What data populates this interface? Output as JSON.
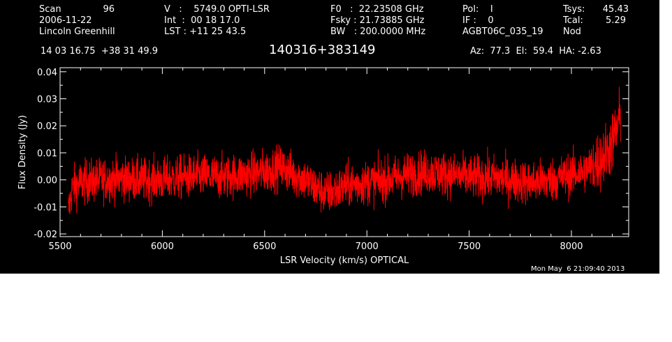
{
  "header": {
    "scan_label": "Scan",
    "scan_value": "96",
    "date": "2006-11-22",
    "observer": "Lincoln Greenhill",
    "velocity": "V   :    5749.0 OPTI-LSR",
    "integration": "Int  :  00 18 17.0",
    "lst": "LST : +11 25 43.5",
    "f0": "F0   :  22.23508 GHz",
    "fsky": "Fsky : 21.73885 GHz",
    "bw": "BW   : 200.0000 MHz",
    "pol": "Pol:    I",
    "if": "IF :    0",
    "project": "AGBT06C_035_19",
    "tsys_label": "Tsys:",
    "tsys_value": "45.43",
    "tcal_label": "Tcal:",
    "tcal_value": "5.29",
    "procedure": "Nod",
    "coords": "14 03 16.75  +38 31 49.9",
    "source": "140316+383149",
    "pointing": "Az:  77.3  El:  59.4  HA: -2.63"
  },
  "timestamp": "Mon May  6 21:09:40 2013",
  "colors": {
    "background": "#000000",
    "foreground": "#ffffff",
    "series": "#ff0000"
  },
  "chart_data": {
    "type": "line",
    "xlabel": "LSR Velocity (km/s) OPTICAL",
    "ylabel": "Flux Density (Jy)",
    "xlim": [
      5500,
      8280
    ],
    "ylim": [
      -0.021,
      0.0415
    ],
    "x_ticks": [
      5500,
      6000,
      6500,
      7000,
      7500,
      8000
    ],
    "x_tick_labels": [
      "5500",
      "6000",
      "6500",
      "7000",
      "7500",
      "8000"
    ],
    "y_ticks": [
      -0.02,
      -0.01,
      0.0,
      0.01,
      0.02,
      0.03,
      0.04
    ],
    "y_tick_labels": [
      "-0.02",
      "-0.01",
      "0.00",
      "0.01",
      "0.02",
      "0.03",
      "0.04"
    ],
    "grid": false,
    "legend": "none",
    "series": [
      {
        "color": "#ff0000",
        "x": [
          5540,
          5560,
          5600,
          5700,
          5800,
          5900,
          6000,
          6100,
          6200,
          6300,
          6400,
          6500,
          6540,
          6580,
          6620,
          6700,
          6750,
          6800,
          6850,
          6900,
          7000,
          7100,
          7200,
          7300,
          7400,
          7500,
          7600,
          7700,
          7800,
          7900,
          8000,
          8050,
          8100,
          8150,
          8180,
          8200,
          8220,
          8240
        ],
        "y": [
          -0.012,
          -0.003,
          -0.001,
          0.0,
          0.0005,
          0.0,
          0.0,
          0.001,
          0.0015,
          0.001,
          0.002,
          0.003,
          0.004,
          0.005,
          0.003,
          0.0,
          -0.003,
          -0.005,
          -0.004,
          -0.002,
          -0.001,
          0.0,
          0.002,
          0.003,
          0.002,
          0.001,
          0.001,
          0.0,
          -0.001,
          0.0,
          0.002,
          0.003,
          0.005,
          0.008,
          0.011,
          0.014,
          0.018,
          0.024
        ],
        "noise_rms_jy": 0.004
      }
    ]
  }
}
